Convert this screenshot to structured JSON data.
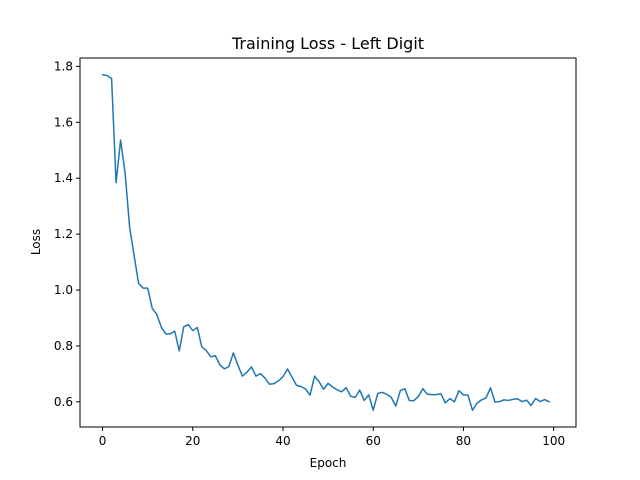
{
  "chart_data": {
    "type": "line",
    "title": "Training Loss - Left Digit",
    "xlabel": "Epoch",
    "ylabel": "Loss",
    "xlim": [
      -5,
      104.95
    ],
    "ylim": [
      0.51,
      1.83
    ],
    "xticks": [
      0,
      20,
      40,
      60,
      80,
      100
    ],
    "xtick_labels": [
      "0",
      "20",
      "40",
      "60",
      "80",
      "100"
    ],
    "yticks": [
      0.6,
      0.8,
      1.0,
      1.2,
      1.4,
      1.6,
      1.8
    ],
    "ytick_labels": [
      "0.6",
      "0.8",
      "1.0",
      "1.2",
      "1.4",
      "1.6",
      "1.8"
    ],
    "grid": false,
    "legend": "none",
    "series": [
      {
        "color": "#1f77b4",
        "x": [
          0,
          1,
          2,
          3,
          4,
          5,
          6,
          7,
          8,
          9,
          10,
          11,
          12,
          13,
          14,
          15,
          16,
          17,
          18,
          19,
          20,
          21,
          22,
          23,
          24,
          25,
          26,
          27,
          28,
          29,
          30,
          31,
          32,
          33,
          34,
          35,
          36,
          37,
          38,
          39,
          40,
          41,
          42,
          43,
          44,
          45,
          46,
          47,
          48,
          49,
          50,
          51,
          52,
          53,
          54,
          55,
          56,
          57,
          58,
          59,
          60,
          61,
          62,
          63,
          64,
          65,
          66,
          67,
          68,
          69,
          70,
          71,
          72,
          73,
          74,
          75,
          76,
          77,
          78,
          79,
          80,
          81,
          82,
          83,
          84,
          85,
          86,
          87,
          88,
          89,
          90,
          91,
          92,
          93,
          94,
          95,
          96,
          97,
          98,
          99
        ],
        "y": [
          1.77,
          1.767,
          1.757,
          1.384,
          1.536,
          1.418,
          1.225,
          1.123,
          1.023,
          1.007,
          1.007,
          0.935,
          0.913,
          0.868,
          0.843,
          0.843,
          0.853,
          0.782,
          0.869,
          0.876,
          0.855,
          0.866,
          0.797,
          0.783,
          0.761,
          0.765,
          0.732,
          0.718,
          0.726,
          0.775,
          0.731,
          0.692,
          0.706,
          0.725,
          0.692,
          0.701,
          0.685,
          0.663,
          0.665,
          0.675,
          0.69,
          0.718,
          0.688,
          0.659,
          0.655,
          0.646,
          0.624,
          0.692,
          0.672,
          0.645,
          0.666,
          0.653,
          0.643,
          0.636,
          0.651,
          0.62,
          0.616,
          0.642,
          0.605,
          0.625,
          0.57,
          0.63,
          0.634,
          0.627,
          0.616,
          0.585,
          0.64,
          0.647,
          0.605,
          0.604,
          0.619,
          0.647,
          0.627,
          0.626,
          0.626,
          0.629,
          0.596,
          0.612,
          0.6,
          0.64,
          0.625,
          0.624,
          0.57,
          0.595,
          0.607,
          0.614,
          0.65,
          0.599,
          0.601,
          0.607,
          0.605,
          0.609,
          0.611,
          0.601,
          0.606,
          0.587,
          0.612,
          0.601,
          0.608,
          0.6
        ]
      }
    ]
  }
}
